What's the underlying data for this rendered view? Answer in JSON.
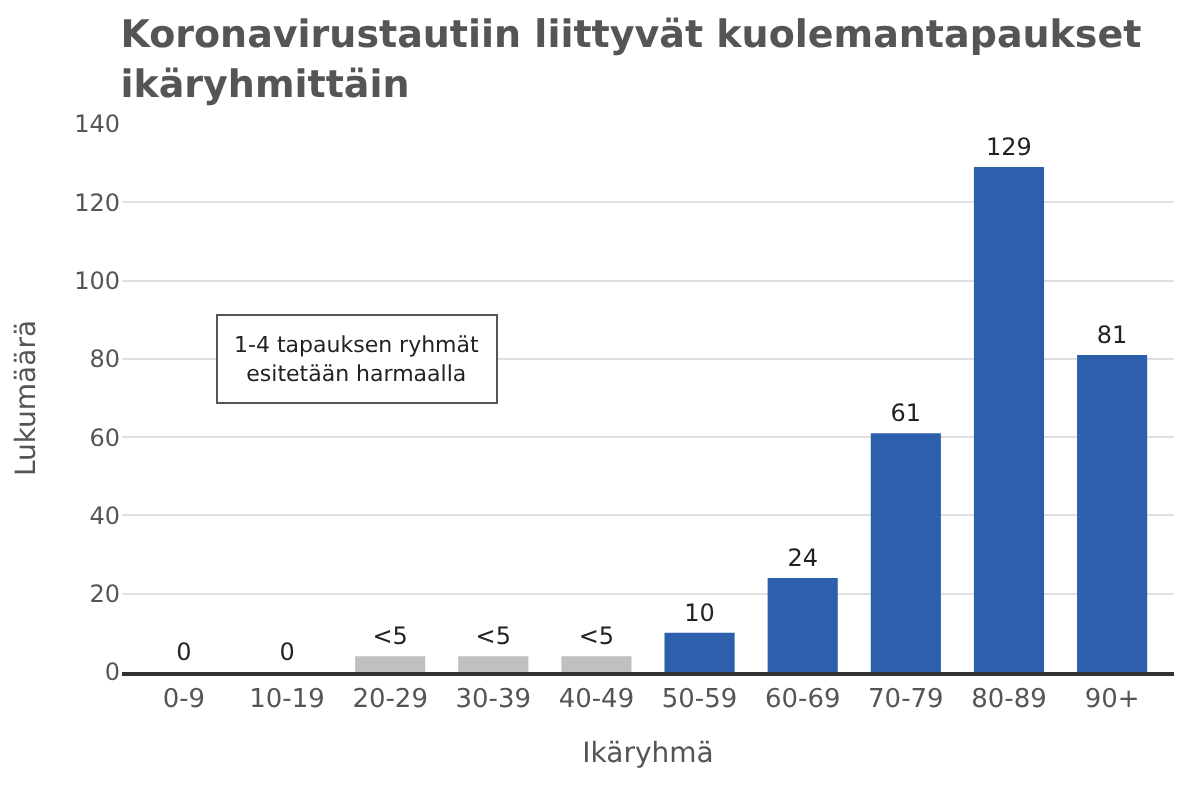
{
  "chart_data": {
    "type": "bar",
    "title": "Koronavirustautiin liittyvät kuolemantapaukset\nikäryhmittäin",
    "xlabel": "Ikäryhmä",
    "ylabel": "Lukumäärä",
    "categories": [
      "0-9",
      "10-19",
      "20-29",
      "30-39",
      "40-49",
      "50-59",
      "60-69",
      "70-79",
      "80-89",
      "90+"
    ],
    "values": [
      0,
      0,
      4,
      4,
      4,
      10,
      24,
      61,
      129,
      81
    ],
    "value_labels": [
      "0",
      "0",
      "<5",
      "<5",
      "<5",
      "10",
      "24",
      "61",
      "129",
      "81"
    ],
    "colors": [
      "#2e5fad",
      "#2e5fad",
      "#c0c0c0",
      "#c0c0c0",
      "#c0c0c0",
      "#2e5fad",
      "#2e5fad",
      "#2e5fad",
      "#2e5fad",
      "#2e5fad"
    ],
    "ylim": [
      0,
      140
    ],
    "yticks": [
      0,
      20,
      40,
      60,
      80,
      100,
      120,
      140
    ],
    "grid": "y",
    "annotations": [
      "1-4 tapauksen ryhmät\nesitetään harmaalla"
    ]
  }
}
